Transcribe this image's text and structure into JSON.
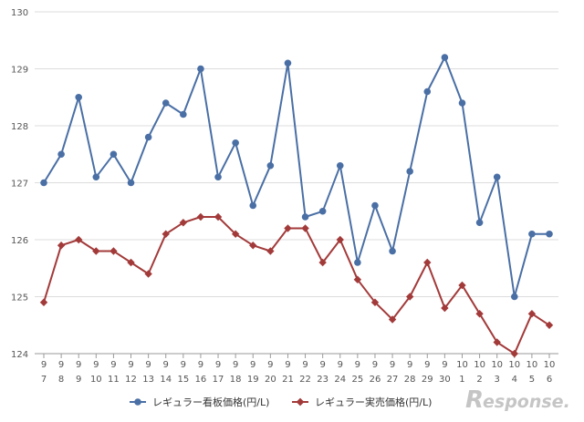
{
  "chart_data": {
    "type": "line",
    "title": "",
    "xlabel": "",
    "ylabel": "",
    "ylim": [
      124,
      130
    ],
    "yticks": [
      124,
      125,
      126,
      127,
      128,
      129,
      130
    ],
    "grid": "horizontal",
    "legend_position": "bottom-center",
    "categories": [
      {
        "month": "9",
        "day": "7"
      },
      {
        "month": "9",
        "day": "8"
      },
      {
        "month": "9",
        "day": "9"
      },
      {
        "month": "9",
        "day": "10"
      },
      {
        "month": "9",
        "day": "11"
      },
      {
        "month": "9",
        "day": "12"
      },
      {
        "month": "9",
        "day": "13"
      },
      {
        "month": "9",
        "day": "14"
      },
      {
        "month": "9",
        "day": "15"
      },
      {
        "month": "9",
        "day": "16"
      },
      {
        "month": "9",
        "day": "17"
      },
      {
        "month": "9",
        "day": "18"
      },
      {
        "month": "9",
        "day": "19"
      },
      {
        "month": "9",
        "day": "20"
      },
      {
        "month": "9",
        "day": "21"
      },
      {
        "month": "9",
        "day": "22"
      },
      {
        "month": "9",
        "day": "23"
      },
      {
        "month": "9",
        "day": "24"
      },
      {
        "month": "9",
        "day": "25"
      },
      {
        "month": "9",
        "day": "26"
      },
      {
        "month": "9",
        "day": "27"
      },
      {
        "month": "9",
        "day": "28"
      },
      {
        "month": "9",
        "day": "29"
      },
      {
        "month": "9",
        "day": "30"
      },
      {
        "month": "10",
        "day": "1"
      },
      {
        "month": "10",
        "day": "2"
      },
      {
        "month": "10",
        "day": "3"
      },
      {
        "month": "10",
        "day": "4"
      },
      {
        "month": "10",
        "day": "5"
      },
      {
        "month": "10",
        "day": "6"
      }
    ],
    "series": [
      {
        "name": "レギュラー看板価格(円/L)",
        "color": "#4a6fa5",
        "marker": "circle",
        "values": [
          127.0,
          127.5,
          128.5,
          127.1,
          127.5,
          127.0,
          127.8,
          128.4,
          128.2,
          129.0,
          127.1,
          127.7,
          126.6,
          127.3,
          129.1,
          126.4,
          126.5,
          127.3,
          125.6,
          126.6,
          125.8,
          127.2,
          128.6,
          129.2,
          128.4,
          126.3,
          127.1,
          125.0,
          126.1,
          126.1
        ]
      },
      {
        "name": "レギュラー実売価格(円/L)",
        "color": "#a33a3a",
        "marker": "diamond",
        "values": [
          124.9,
          125.9,
          126.0,
          125.8,
          125.8,
          125.6,
          125.4,
          126.1,
          126.3,
          126.4,
          126.4,
          126.1,
          125.9,
          125.8,
          126.2,
          126.2,
          125.6,
          126.0,
          125.3,
          124.9,
          124.6,
          125.0,
          125.6,
          124.8,
          125.2,
          124.7,
          124.2,
          124.0,
          124.7,
          124.5
        ]
      }
    ]
  },
  "watermark": {
    "text": "esponse.",
    "logo_letter": "R",
    "color": "#bfbfbf"
  }
}
